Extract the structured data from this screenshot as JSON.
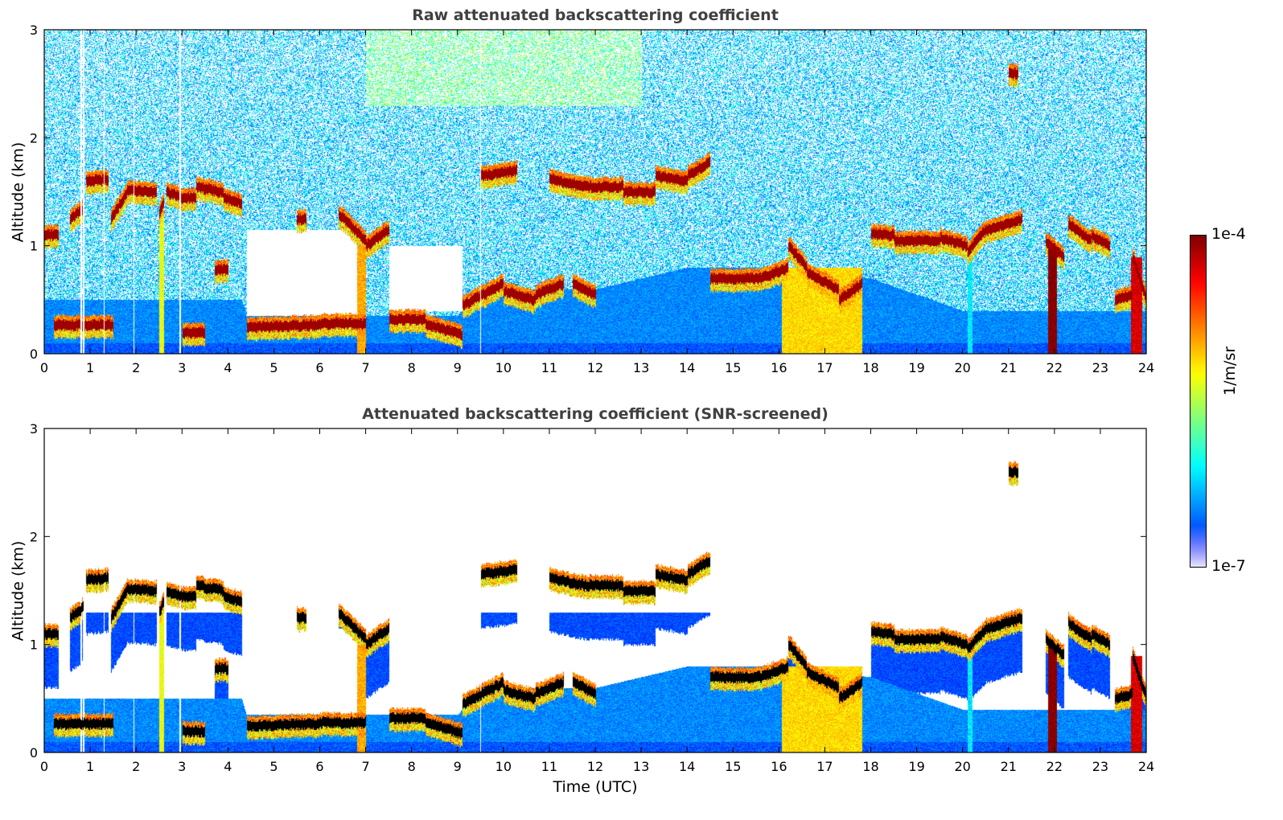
{
  "chart_data": [
    {
      "type": "heatmap",
      "title": "Raw attenuated backscattering coefficient",
      "xlabel": "",
      "ylabel": "Altitude (km)",
      "xlim": [
        0,
        24
      ],
      "ylim": [
        0,
        3
      ],
      "xticks": [
        0,
        1,
        2,
        3,
        4,
        5,
        6,
        7,
        8,
        9,
        10,
        11,
        12,
        13,
        14,
        15,
        16,
        17,
        18,
        19,
        20,
        21,
        22,
        23,
        24
      ],
      "yticks": [
        0,
        1,
        2,
        3
      ],
      "screened": false
    },
    {
      "type": "heatmap",
      "title": "Attenuated backscattering coefficient (SNR-screened)",
      "xlabel": "Time (UTC)",
      "ylabel": "Altitude (km)",
      "xlim": [
        0,
        24
      ],
      "ylim": [
        0,
        3
      ],
      "xticks": [
        0,
        1,
        2,
        3,
        4,
        5,
        6,
        7,
        8,
        9,
        10,
        11,
        12,
        13,
        14,
        15,
        16,
        17,
        18,
        19,
        20,
        21,
        22,
        23,
        24
      ],
      "yticks": [
        0,
        1,
        2,
        3
      ],
      "screened": true
    }
  ],
  "colorbar": {
    "label": "1/m/sr",
    "min_label": "1e-7",
    "max_label": "1e-4",
    "colormap": "jet",
    "scale": "log"
  },
  "scene": {
    "cloud_segments_time_alt": [
      [
        0,
        0.3,
        1.1,
        1.1
      ],
      [
        0.55,
        0.85,
        1.25,
        1.35
      ],
      [
        0.9,
        1.4,
        1.6,
        1.62
      ],
      [
        1.45,
        1.8,
        1.25,
        1.5
      ],
      [
        1.8,
        2.45,
        1.52,
        1.5
      ],
      [
        2.5,
        2.6,
        1.3,
        1.4
      ],
      [
        2.65,
        3.0,
        1.5,
        1.45
      ],
      [
        3.0,
        3.3,
        1.45,
        1.45
      ],
      [
        3.3,
        3.9,
        1.55,
        1.5
      ],
      [
        3.9,
        4.3,
        1.45,
        1.4
      ],
      [
        3.7,
        4.0,
        0.78,
        0.78
      ],
      [
        5.5,
        5.7,
        1.25,
        1.25
      ],
      [
        6.4,
        7.0,
        1.3,
        1.05
      ],
      [
        7.0,
        7.5,
        1.0,
        1.15
      ],
      [
        9.5,
        10.3,
        1.65,
        1.7
      ],
      [
        11.0,
        11.8,
        1.62,
        1.55
      ],
      [
        11.8,
        12.6,
        1.55,
        1.55
      ],
      [
        12.6,
        13.3,
        1.5,
        1.5
      ],
      [
        13.3,
        14.0,
        1.65,
        1.6
      ],
      [
        14.0,
        14.5,
        1.65,
        1.78
      ],
      [
        14.5,
        15.6,
        0.7,
        0.7
      ],
      [
        15.6,
        16.2,
        0.7,
        0.8
      ],
      [
        16.2,
        16.6,
        1.0,
        0.8
      ],
      [
        16.6,
        17.3,
        0.75,
        0.6
      ],
      [
        17.3,
        17.8,
        0.5,
        0.65
      ],
      [
        18.0,
        18.5,
        1.12,
        1.1
      ],
      [
        18.5,
        19.5,
        1.05,
        1.05
      ],
      [
        19.5,
        20.1,
        1.08,
        1.0
      ],
      [
        20.1,
        20.5,
        0.95,
        1.15
      ],
      [
        20.5,
        21.3,
        1.15,
        1.25
      ],
      [
        21.8,
        22.2,
        1.05,
        0.9
      ],
      [
        22.3,
        22.8,
        1.2,
        1.05
      ],
      [
        22.8,
        23.2,
        1.1,
        1.0
      ],
      [
        23.3,
        23.7,
        0.5,
        0.55
      ],
      [
        23.7,
        24.0,
        0.9,
        0.5
      ],
      [
        0.2,
        1.5,
        0.27,
        0.27
      ],
      [
        3.0,
        3.5,
        0.2,
        0.2
      ],
      [
        4.4,
        6.0,
        0.25,
        0.27
      ],
      [
        6.0,
        7.0,
        0.28,
        0.28
      ],
      [
        7.5,
        8.3,
        0.32,
        0.32
      ],
      [
        8.3,
        9.1,
        0.28,
        0.18
      ],
      [
        9.1,
        10.0,
        0.45,
        0.65
      ],
      [
        10.0,
        10.7,
        0.58,
        0.5
      ],
      [
        10.7,
        11.3,
        0.55,
        0.65
      ],
      [
        11.5,
        12.0,
        0.65,
        0.55
      ],
      [
        21.0,
        21.2,
        2.6,
        2.6
      ]
    ],
    "boundary_layer_top": [
      [
        0,
        0.5
      ],
      [
        4.3,
        0.5
      ],
      [
        4.4,
        0.35
      ],
      [
        9.0,
        0.35
      ],
      [
        9.5,
        0.6
      ],
      [
        12,
        0.6
      ],
      [
        14,
        0.8
      ],
      [
        16,
        0.8
      ],
      [
        18,
        0.7
      ],
      [
        20,
        0.4
      ],
      [
        24,
        0.4
      ]
    ],
    "clear_zones": [
      [
        4.4,
        6.8,
        0.35,
        1.15
      ],
      [
        7.5,
        9.1,
        0.4,
        1.0
      ]
    ],
    "precip_columns": [
      [
        16.05,
        17.8,
        0.8,
        0.6
      ],
      [
        23.65,
        23.9,
        0.9,
        0.85
      ],
      [
        21.85,
        22.05,
        1.0,
        0.95
      ],
      [
        2.5,
        2.6,
        1.4,
        0.55
      ],
      [
        6.8,
        7.0,
        1.0,
        0.65
      ],
      [
        20.1,
        20.2,
        1.0,
        0.3
      ]
    ],
    "gap_times": [
      0.8,
      0.85,
      1.3,
      1.95,
      2.95,
      9.5
    ]
  }
}
